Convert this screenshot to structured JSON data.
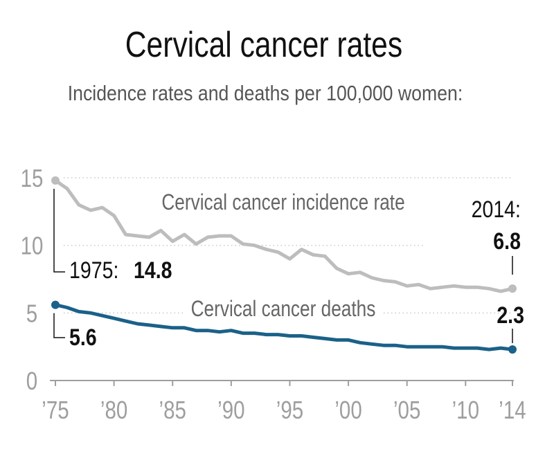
{
  "chart_data": {
    "type": "line",
    "title": "Cervical cancer rates",
    "subtitle": "Incidence rates and deaths per 100,000 women:",
    "xlabel": "",
    "ylabel": "",
    "xlim": [
      1975,
      2014
    ],
    "ylim": [
      0,
      15
    ],
    "x_ticks": [
      1975,
      1980,
      1985,
      1990,
      1995,
      2000,
      2005,
      2010,
      2014
    ],
    "x_tick_labels": [
      "’75",
      "’80",
      "’85",
      "’90",
      "’95",
      "’00",
      "’05",
      "’10",
      "’14"
    ],
    "y_ticks": [
      0,
      5,
      10,
      15
    ],
    "y_tick_labels": [
      "0",
      "5",
      "10",
      "15"
    ],
    "grid": "dotted horizontal",
    "x": [
      1975,
      1976,
      1977,
      1978,
      1979,
      1980,
      1981,
      1982,
      1983,
      1984,
      1985,
      1986,
      1987,
      1988,
      1989,
      1990,
      1991,
      1992,
      1993,
      1994,
      1995,
      1996,
      1997,
      1998,
      1999,
      2000,
      2001,
      2002,
      2003,
      2004,
      2005,
      2006,
      2007,
      2008,
      2009,
      2010,
      2011,
      2012,
      2013,
      2014
    ],
    "series": [
      {
        "name": "Cervical cancer incidence rate",
        "color": "#bdbdbd",
        "values": [
          14.8,
          14.2,
          13.0,
          12.6,
          12.8,
          12.2,
          10.8,
          10.7,
          10.6,
          11.1,
          10.3,
          10.8,
          10.1,
          10.6,
          10.7,
          10.7,
          10.1,
          10.0,
          9.7,
          9.5,
          9.0,
          9.7,
          9.3,
          9.2,
          8.3,
          7.9,
          8.0,
          7.6,
          7.4,
          7.3,
          7.0,
          7.1,
          6.8,
          6.9,
          7.0,
          6.9,
          6.9,
          6.8,
          6.6,
          6.8
        ]
      },
      {
        "name": "Cervical cancer deaths",
        "color": "#1b6189",
        "values": [
          5.6,
          5.4,
          5.1,
          5.0,
          4.8,
          4.6,
          4.4,
          4.2,
          4.1,
          4.0,
          3.9,
          3.9,
          3.7,
          3.7,
          3.6,
          3.7,
          3.5,
          3.5,
          3.4,
          3.4,
          3.3,
          3.3,
          3.2,
          3.1,
          3.0,
          3.0,
          2.8,
          2.7,
          2.6,
          2.6,
          2.5,
          2.5,
          2.5,
          2.5,
          2.4,
          2.4,
          2.4,
          2.3,
          2.4,
          2.3
        ]
      }
    ],
    "annotations": {
      "incidence_start_label": "1975:",
      "incidence_start_value": "14.8",
      "incidence_end_label": "2014:",
      "incidence_end_value": "6.8",
      "deaths_start_value": "5.6",
      "deaths_end_value": "2.3"
    },
    "colors": {
      "axis_text": "#9e9e9e",
      "grid": "#c8c8c8",
      "text": "#111111"
    }
  }
}
